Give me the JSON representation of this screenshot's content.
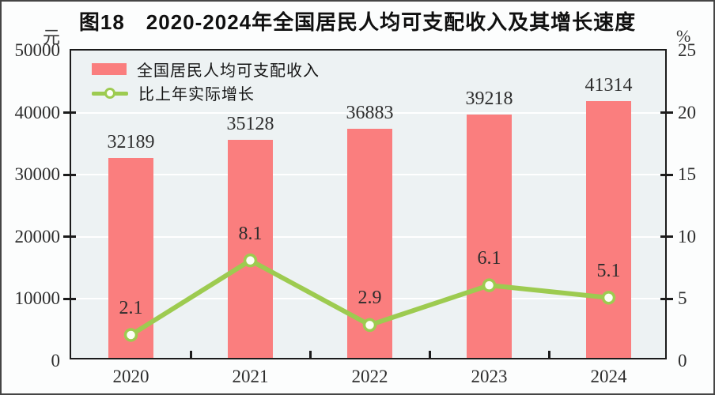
{
  "title": "图18　2020-2024年全国居民人均可支配收入及其增长速度",
  "left_axis": {
    "unit": "元",
    "ticks": [
      "50000",
      "40000",
      "30000",
      "20000",
      "10000",
      "0"
    ]
  },
  "right_axis": {
    "unit": "%",
    "ticks": [
      "25",
      "20",
      "15",
      "10",
      "5",
      "0"
    ]
  },
  "legend": [
    {
      "label": "全国居民人均可支配收入",
      "type": "bar"
    },
    {
      "label": "比上年实际增长",
      "type": "line"
    }
  ],
  "colors": {
    "bar": "#fa7e7e",
    "line": "#9dcb50",
    "marker_fill": "#fcfef5",
    "plot_background": "#edf2f3",
    "gridline": "#ffffff",
    "axis": "#1b1b1b"
  },
  "chart_data": {
    "type": "bar",
    "subtype": "bar+line combo",
    "title": "图18 2020-2024年全国居民人均可支配收入及其增长速度",
    "categories": [
      "2020",
      "2021",
      "2022",
      "2023",
      "2024"
    ],
    "series": [
      {
        "name": "全国居民人均可支配收入",
        "type": "bar",
        "axis": "left",
        "unit": "元",
        "values": [
          32189,
          35128,
          36883,
          39218,
          41314
        ],
        "labels": [
          "32189",
          "35128",
          "36883",
          "39218",
          "41314"
        ]
      },
      {
        "name": "比上年实际增长",
        "type": "line",
        "axis": "right",
        "unit": "%",
        "values": [
          2.1,
          8.1,
          2.9,
          6.1,
          5.1
        ],
        "labels": [
          "2.1",
          "8.1",
          "2.9",
          "6.1",
          "5.1"
        ]
      }
    ],
    "left_ylim": [
      0,
      50000
    ],
    "right_ylim": [
      0,
      25
    ],
    "left_tick_step": 10000,
    "right_tick_step": 5,
    "grid": true,
    "legend_position": "top-left"
  }
}
